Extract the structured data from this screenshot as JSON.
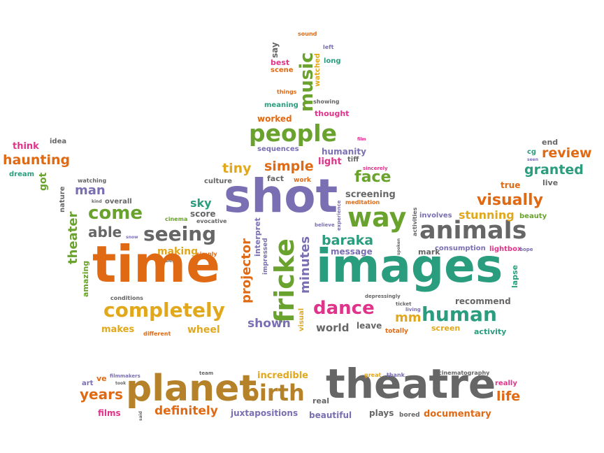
{
  "palette": {
    "orange": "#e06a14",
    "teal": "#2a9d7e",
    "purple": "#7a6fb2",
    "pink": "#e0338a",
    "green": "#6aa22e",
    "gray": "#666666",
    "gold": "#e2a81c",
    "brown": "#b5822a"
  },
  "words": [
    {
      "text": "sound",
      "color": "orange"
    },
    {
      "text": "say",
      "color": "gray"
    },
    {
      "text": "left",
      "color": "purple"
    },
    {
      "text": "music",
      "color": "green"
    },
    {
      "text": "best",
      "color": "pink"
    },
    {
      "text": "long",
      "color": "teal"
    },
    {
      "text": "scene",
      "color": "orange"
    },
    {
      "text": "watched",
      "color": "gold"
    },
    {
      "text": "things",
      "color": "orange"
    },
    {
      "text": "showing",
      "color": "gray"
    },
    {
      "text": "meaning",
      "color": "teal"
    },
    {
      "text": "thought",
      "color": "pink"
    },
    {
      "text": "worked",
      "color": "orange"
    },
    {
      "text": "people",
      "color": "green"
    },
    {
      "text": "sequences",
      "color": "purple"
    },
    {
      "text": "film",
      "color": "pink"
    },
    {
      "text": "humanity",
      "color": "purple"
    },
    {
      "text": "light",
      "color": "pink"
    },
    {
      "text": "tiff",
      "color": "gray"
    },
    {
      "text": "tiny",
      "color": "gold"
    },
    {
      "text": "simple",
      "color": "orange"
    },
    {
      "text": "sincerely",
      "color": "pink"
    },
    {
      "text": "face",
      "color": "green"
    },
    {
      "text": "culture",
      "color": "gray"
    },
    {
      "text": "fact",
      "color": "gray"
    },
    {
      "text": "work",
      "color": "orange"
    },
    {
      "text": "shot",
      "color": "purple"
    },
    {
      "text": "screening",
      "color": "gray"
    },
    {
      "text": "meditation",
      "color": "orange"
    },
    {
      "text": "sky",
      "color": "teal"
    },
    {
      "text": "score",
      "color": "gray"
    },
    {
      "text": "evocative",
      "color": "gray"
    },
    {
      "text": "cinema",
      "color": "green"
    },
    {
      "text": "experience",
      "color": "purple"
    },
    {
      "text": "way",
      "color": "green"
    },
    {
      "text": "believe",
      "color": "purple"
    },
    {
      "text": "activities",
      "color": "gray"
    },
    {
      "text": "seeing",
      "color": "gray"
    },
    {
      "text": "interpret",
      "color": "purple"
    },
    {
      "text": "impressed",
      "color": "purple"
    },
    {
      "text": "projector",
      "color": "orange"
    },
    {
      "text": "fricke",
      "color": "green"
    },
    {
      "text": "minutes",
      "color": "purple"
    },
    {
      "text": "baraka",
      "color": "teal"
    },
    {
      "text": "message",
      "color": "purple"
    },
    {
      "text": "spoken",
      "color": "gray"
    },
    {
      "text": "makes",
      "color": "gold"
    },
    {
      "text": "making",
      "color": "gold"
    },
    {
      "text": "simply",
      "color": "orange"
    },
    {
      "text": "tibetan",
      "color": "gray"
    },
    {
      "text": "time",
      "color": "orange"
    },
    {
      "text": "images",
      "color": "teal"
    },
    {
      "text": "animals",
      "color": "gray"
    },
    {
      "text": "completely",
      "color": "gold"
    },
    {
      "text": "dance",
      "color": "pink"
    },
    {
      "text": "human",
      "color": "teal"
    },
    {
      "text": "shown",
      "color": "purple"
    },
    {
      "text": "visual",
      "color": "gold"
    },
    {
      "text": "depressingly",
      "color": "gray"
    },
    {
      "text": "ticket",
      "color": "gray"
    },
    {
      "text": "living",
      "color": "purple"
    },
    {
      "text": "mm",
      "color": "gold"
    },
    {
      "text": "recommend",
      "color": "gray"
    },
    {
      "text": "lapse",
      "color": "teal"
    },
    {
      "text": "world",
      "color": "gray"
    },
    {
      "text": "leave",
      "color": "gray"
    },
    {
      "text": "totally",
      "color": "orange"
    },
    {
      "text": "screen",
      "color": "gold"
    },
    {
      "text": "activity",
      "color": "teal"
    },
    {
      "text": "wheel",
      "color": "gold"
    },
    {
      "text": "different",
      "color": "orange"
    },
    {
      "text": "conditions",
      "color": "gray"
    },
    {
      "text": "amazing",
      "color": "green"
    },
    {
      "text": "theater",
      "color": "green"
    },
    {
      "text": "able",
      "color": "gray"
    },
    {
      "text": "snow",
      "color": "purple"
    },
    {
      "text": "come",
      "color": "green"
    },
    {
      "text": "man",
      "color": "purple"
    },
    {
      "text": "overall",
      "color": "gray"
    },
    {
      "text": "kind",
      "color": "gray"
    },
    {
      "text": "watching",
      "color": "gray"
    },
    {
      "text": "nature",
      "color": "gray"
    },
    {
      "text": "got",
      "color": "green"
    },
    {
      "text": "dream",
      "color": "teal"
    },
    {
      "text": "idea",
      "color": "gray"
    },
    {
      "text": "think",
      "color": "pink"
    },
    {
      "text": "haunting",
      "color": "orange"
    },
    {
      "text": "visually",
      "color": "orange"
    },
    {
      "text": "stunning",
      "color": "gold"
    },
    {
      "text": "involves",
      "color": "purple"
    },
    {
      "text": "beauty",
      "color": "green"
    },
    {
      "text": "consumption",
      "color": "purple"
    },
    {
      "text": "lightbox",
      "color": "pink"
    },
    {
      "text": "hope",
      "color": "purple"
    },
    {
      "text": "mark",
      "color": "gray"
    },
    {
      "text": "end",
      "color": "gray"
    },
    {
      "text": "review",
      "color": "orange"
    },
    {
      "text": "cg",
      "color": "teal"
    },
    {
      "text": "seen",
      "color": "purple"
    },
    {
      "text": "granted",
      "color": "teal"
    },
    {
      "text": "true",
      "color": "orange"
    },
    {
      "text": "live",
      "color": "gray"
    },
    {
      "text": "art",
      "color": "purple"
    },
    {
      "text": "ve",
      "color": "orange"
    },
    {
      "text": "filmmakers",
      "color": "purple"
    },
    {
      "text": "took",
      "color": "gray"
    },
    {
      "text": "years",
      "color": "orange"
    },
    {
      "text": "planet",
      "color": "brown"
    },
    {
      "text": "birth",
      "color": "brown"
    },
    {
      "text": "films",
      "color": "pink"
    },
    {
      "text": "said",
      "color": "gray"
    },
    {
      "text": "definitely",
      "color": "orange"
    },
    {
      "text": "team",
      "color": "gray"
    },
    {
      "text": "incredible",
      "color": "gold"
    },
    {
      "text": "juxtapositions",
      "color": "purple"
    },
    {
      "text": "real",
      "color": "gray"
    },
    {
      "text": "theatre",
      "color": "gray"
    },
    {
      "text": "great",
      "color": "gold"
    },
    {
      "text": "thank",
      "color": "purple"
    },
    {
      "text": "beautiful",
      "color": "purple"
    },
    {
      "text": "plays",
      "color": "gray"
    },
    {
      "text": "bored",
      "color": "gray"
    },
    {
      "text": "cinematography",
      "color": "gray"
    },
    {
      "text": "really",
      "color": "pink"
    },
    {
      "text": "life",
      "color": "orange"
    },
    {
      "text": "documentary",
      "color": "orange"
    }
  ]
}
